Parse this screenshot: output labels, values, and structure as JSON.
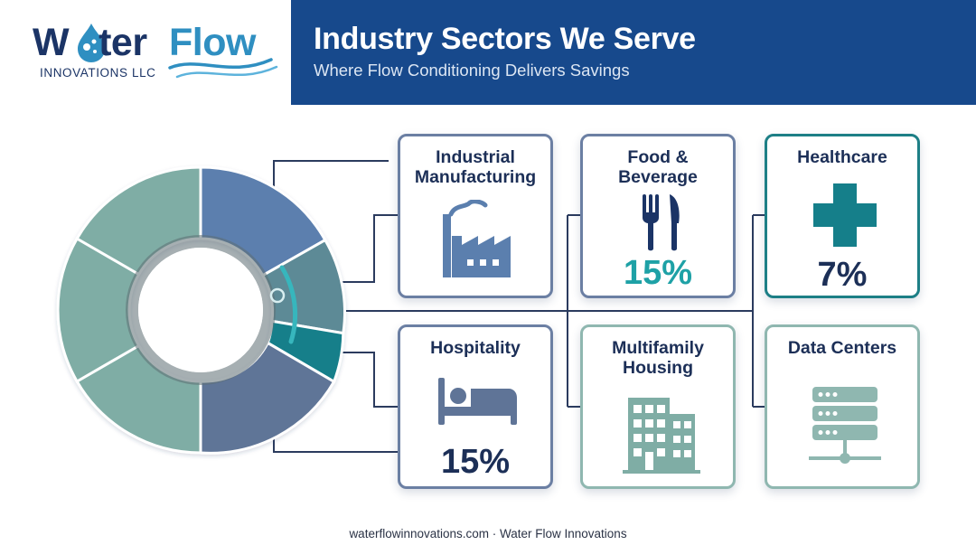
{
  "logo": {
    "word1": "W",
    "word1_rest": "ter",
    "word2": "Flow",
    "subtitle": "INNOVATIONS LLC"
  },
  "header": {
    "title": "Industry Sectors We Serve",
    "subtitle": "Where Flow Conditioning Delivers Savings"
  },
  "sectors": [
    {
      "title": "Industrial Manufacturing",
      "percent": "",
      "icon": "factory-icon"
    },
    {
      "title": "Food & Beverage",
      "percent": "15%",
      "icon": "fork-knife-icon"
    },
    {
      "title": "Healthcare",
      "percent": "7%",
      "icon": "medical-cross-icon"
    },
    {
      "title": "Hospitality",
      "percent": "15%",
      "icon": "bed-icon"
    },
    {
      "title": "Multifamily Housing",
      "percent": "",
      "icon": "apartment-building-icon"
    },
    {
      "title": "Data Centers",
      "percent": "",
      "icon": "server-rack-icon"
    }
  ],
  "colors": {
    "header_band": "#17498c",
    "navy_text": "#1c2f57",
    "teal_accent": "#1ea1a6",
    "segment_blue": "#5b7fae",
    "segment_slate": "#5f7497",
    "segment_teal_dark": "#157f8a",
    "segment_sage": "#7fada5"
  },
  "footer": {
    "text": "waterflowinnovations.com · Water Flow Innovations"
  }
}
